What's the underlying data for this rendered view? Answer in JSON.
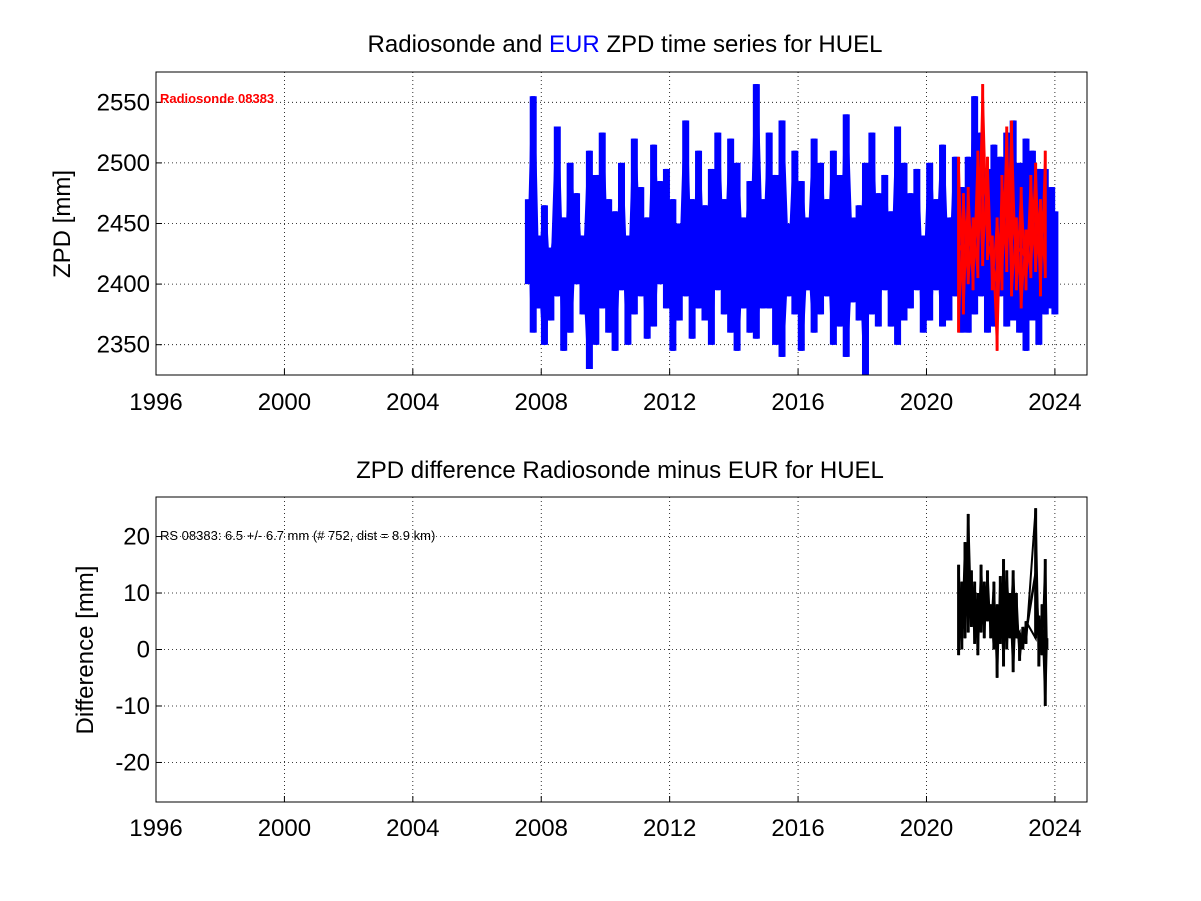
{
  "colors": {
    "eur": "#0000ff",
    "radiosonde": "#ff0000",
    "difference": "#000000"
  },
  "chart_data": [
    {
      "type": "line",
      "title_parts": [
        "Radiosonde and ",
        "EUR",
        " ZPD time series for HUEL"
      ],
      "title_colors": [
        "#000000",
        "#0000ff",
        "#000000"
      ],
      "ylabel": "ZPD [mm]",
      "xlabel": "",
      "xlim": [
        1996,
        2025
      ],
      "ylim": [
        2325,
        2575
      ],
      "xticks": [
        1996,
        2000,
        2004,
        2008,
        2012,
        2016,
        2020,
        2024
      ],
      "yticks": [
        2350,
        2400,
        2450,
        2500,
        2550
      ],
      "grid": true,
      "annotation": "Radiosonde 08383",
      "series": [
        {
          "color": "#0000ff",
          "x": [
            2007.6,
            2007.75,
            2007.9,
            2008.1,
            2008.3,
            2008.5,
            2008.7,
            2008.9,
            2009.1,
            2009.3,
            2009.5,
            2009.7,
            2009.9,
            2010.1,
            2010.3,
            2010.5,
            2010.7,
            2010.9,
            2011.1,
            2011.3,
            2011.5,
            2011.7,
            2011.9,
            2012.1,
            2012.3,
            2012.5,
            2012.7,
            2012.9,
            2013.1,
            2013.3,
            2013.5,
            2013.7,
            2013.9,
            2014.1,
            2014.3,
            2014.5,
            2014.7,
            2014.9,
            2015.1,
            2015.3,
            2015.5,
            2015.7,
            2015.9,
            2016.1,
            2016.3,
            2016.5,
            2016.7,
            2016.9,
            2017.1,
            2017.3,
            2017.5,
            2017.7,
            2017.9,
            2018.1,
            2018.3,
            2018.5,
            2018.7,
            2018.9,
            2019.1,
            2019.3,
            2019.5,
            2019.7,
            2019.9,
            2020.1,
            2020.3,
            2020.5,
            2020.7,
            2020.9,
            2021.1,
            2021.3,
            2021.5,
            2021.7,
            2021.9,
            2022.1,
            2022.3,
            2022.5,
            2022.7,
            2022.9,
            2023.1,
            2023.3,
            2023.5,
            2023.7,
            2023.9,
            2024.0
          ],
          "y_min": [
            2400,
            2360,
            2380,
            2350,
            2370,
            2390,
            2345,
            2360,
            2400,
            2375,
            2330,
            2350,
            2380,
            2360,
            2345,
            2395,
            2350,
            2375,
            2390,
            2355,
            2365,
            2400,
            2380,
            2345,
            2370,
            2390,
            2355,
            2380,
            2370,
            2350,
            2395,
            2375,
            2360,
            2345,
            2380,
            2360,
            2355,
            2380,
            2380,
            2350,
            2340,
            2390,
            2375,
            2345,
            2395,
            2360,
            2375,
            2390,
            2350,
            2365,
            2340,
            2385,
            2370,
            2325,
            2375,
            2365,
            2395,
            2365,
            2350,
            2370,
            2380,
            2395,
            2360,
            2370,
            2395,
            2365,
            2370,
            2390,
            2360,
            2360,
            2375,
            2390,
            2360,
            2365,
            2390,
            2365,
            2370,
            2360,
            2345,
            2370,
            2350,
            2375,
            2380,
            2375
          ],
          "y_max": [
            2470,
            2555,
            2440,
            2465,
            2430,
            2530,
            2455,
            2500,
            2475,
            2440,
            2510,
            2490,
            2525,
            2470,
            2460,
            2500,
            2440,
            2520,
            2480,
            2455,
            2515,
            2485,
            2495,
            2470,
            2450,
            2535,
            2470,
            2510,
            2465,
            2495,
            2525,
            2470,
            2520,
            2500,
            2455,
            2485,
            2565,
            2470,
            2525,
            2490,
            2535,
            2450,
            2510,
            2485,
            2455,
            2520,
            2500,
            2470,
            2510,
            2490,
            2540,
            2455,
            2465,
            2500,
            2525,
            2475,
            2490,
            2460,
            2530,
            2500,
            2475,
            2495,
            2440,
            2500,
            2470,
            2515,
            2455,
            2505,
            2480,
            2505,
            2555,
            2525,
            2495,
            2515,
            2505,
            2525,
            2535,
            2500,
            2520,
            2510,
            2495,
            2495,
            2480,
            2460
          ]
        },
        {
          "color": "#ff0000",
          "x": [
            2021.0,
            2021.15,
            2021.3,
            2021.45,
            2021.6,
            2021.75,
            2021.9,
            2022.05,
            2022.2,
            2022.35,
            2022.5,
            2022.65,
            2022.8,
            2022.95,
            2023.1,
            2023.25,
            2023.4,
            2023.55,
            2023.7
          ],
          "y_min": [
            2360,
            2375,
            2400,
            2395,
            2405,
            2415,
            2420,
            2395,
            2345,
            2395,
            2410,
            2390,
            2395,
            2380,
            2395,
            2405,
            2410,
            2390,
            2405
          ],
          "y_max": [
            2505,
            2475,
            2480,
            2455,
            2510,
            2565,
            2505,
            2440,
            2455,
            2490,
            2530,
            2535,
            2455,
            2480,
            2445,
            2490,
            2500,
            2470,
            2510
          ]
        }
      ]
    },
    {
      "type": "line",
      "title": "ZPD difference Radiosonde minus EUR for HUEL",
      "ylabel": "Difference [mm]",
      "xlabel": "",
      "xlim": [
        1996,
        2025
      ],
      "ylim": [
        -27,
        27
      ],
      "xticks": [
        1996,
        2000,
        2004,
        2008,
        2012,
        2016,
        2020,
        2024
      ],
      "yticks": [
        -20,
        -10,
        0,
        10,
        20
      ],
      "grid": true,
      "annotation": "RS 08383: 6.5 +/- 6.7 mm (# 752, dist =   8.9 km)",
      "series": [
        {
          "color": "#000000",
          "x": [
            2021.0,
            2021.1,
            2021.2,
            2021.3,
            2021.4,
            2021.5,
            2021.6,
            2021.7,
            2021.8,
            2021.9,
            2022.0,
            2022.1,
            2022.2,
            2022.3,
            2022.4,
            2022.5,
            2022.6,
            2022.7,
            2022.8,
            2022.9,
            2023.0,
            2023.1,
            2023.4,
            2023.5,
            2023.6,
            2023.7,
            2023.75
          ],
          "y_min": [
            -1,
            0,
            2,
            3,
            4,
            1,
            -1,
            3,
            2,
            5,
            2,
            0,
            -5,
            1,
            -3,
            0,
            2,
            -4,
            2,
            -2,
            0,
            1,
            2,
            -3,
            -1,
            -10,
            0
          ],
          "y_max": [
            15,
            12,
            19,
            24,
            14,
            12,
            10,
            15,
            12,
            14,
            8,
            12,
            8,
            13,
            16,
            14,
            10,
            14,
            10,
            3,
            4,
            5,
            25,
            6,
            8,
            16,
            2
          ]
        }
      ]
    }
  ]
}
